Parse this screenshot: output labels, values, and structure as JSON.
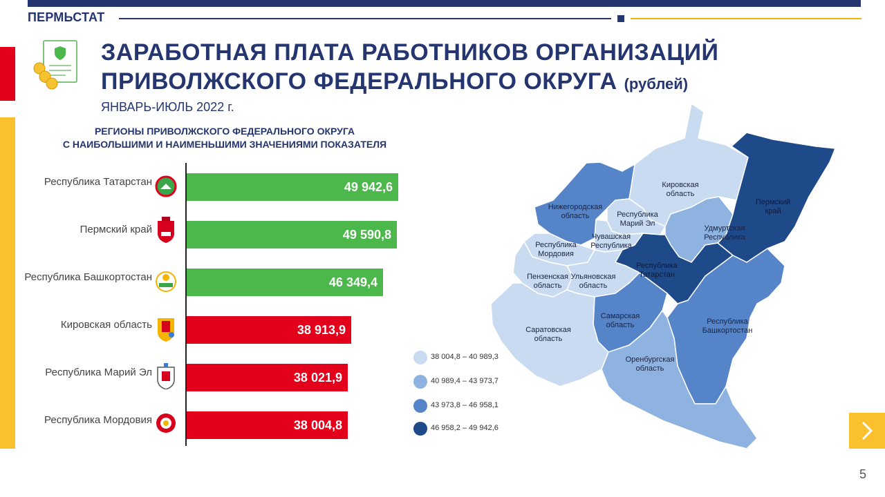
{
  "header": {
    "brand": "ПЕРМЬСТАТ",
    "title_line1": "ЗАРАБОТНАЯ ПЛАТА РАБОТНИКОВ ОРГАНИЗАЦИЙ",
    "title_line2": "ПРИВОЛЖСКОГО ФЕДЕРАЛЬНОГО ОКРУГА",
    "title_unit": "(рублей)",
    "period": "ЯНВАРЬ-ИЮЛЬ 2022 г."
  },
  "chart_data": {
    "type": "bar",
    "orientation": "horizontal",
    "title_line1": "РЕГИОНЫ ПРИВОЛЖСКОГО ФЕДЕРАЛЬНОГО ОКРУГА",
    "title_line2": "С НАИБОЛЬШИМИ И НАИМЕНЬШИМИ ЗНАЧЕНИЯМИ ПОКАЗАТЕЛЯ",
    "categories": [
      "Республика Татарстан",
      "Пермский край",
      "Республика Башкортостан",
      "Кировская область",
      "Республика Марий Эл",
      "Республика Мордовия"
    ],
    "values": [
      49942.6,
      49590.8,
      46349.4,
      38913.9,
      38021.9,
      38004.8
    ],
    "value_labels": [
      "49 942,6",
      "49 590,8",
      "46 349,4",
      "38 913,9",
      "38 021,9",
      "38 004,8"
    ],
    "bar_colors": [
      "#4cb84c",
      "#4cb84c",
      "#4cb84c",
      "#e3001b",
      "#e3001b",
      "#e3001b"
    ],
    "grid": false
  },
  "map": {
    "regions": [
      {
        "name": "Кировская\nобласть",
        "color": "#c9dbf0"
      },
      {
        "name": "Пермский\nкрай",
        "color": "#1f4a8a"
      },
      {
        "name": "Нижегородская\nобласть",
        "color": "#5585c8"
      },
      {
        "name": "Республика\nМарий Эл",
        "color": "#c9dbf0"
      },
      {
        "name": "Чувашская\nРеспублика",
        "color": "#c9dbf0"
      },
      {
        "name": "Удмуртская\nРеспублика",
        "color": "#8fb3e0"
      },
      {
        "name": "Республика\nМордовия",
        "color": "#c9dbf0"
      },
      {
        "name": "Республика\nТатарстан",
        "color": "#1f4a8a"
      },
      {
        "name": "Пензенская\nобласть",
        "color": "#c9dbf0"
      },
      {
        "name": "Ульяновская\nобласть",
        "color": "#c9dbf0"
      },
      {
        "name": "Самарская\nобласть",
        "color": "#5585c8"
      },
      {
        "name": "Республика\nБашкортостан",
        "color": "#5585c8"
      },
      {
        "name": "Саратовская\nобласть",
        "color": "#c9dbf0"
      },
      {
        "name": "Оренбургская\nобласть",
        "color": "#8fb3e0"
      }
    ]
  },
  "legend": [
    {
      "text": "38 004,8 – 40 989,3",
      "color": "#c9dbf0"
    },
    {
      "text": "40 989,4 – 43 973,7",
      "color": "#8fb3e0"
    },
    {
      "text": "43 973,8 – 46 958,1",
      "color": "#5585c8"
    },
    {
      "text": "46 958,2 – 49 942,6",
      "color": "#1f4a8a"
    }
  ],
  "footer": {
    "page_number": "5",
    "next_icon": "chevron-right-icon"
  }
}
